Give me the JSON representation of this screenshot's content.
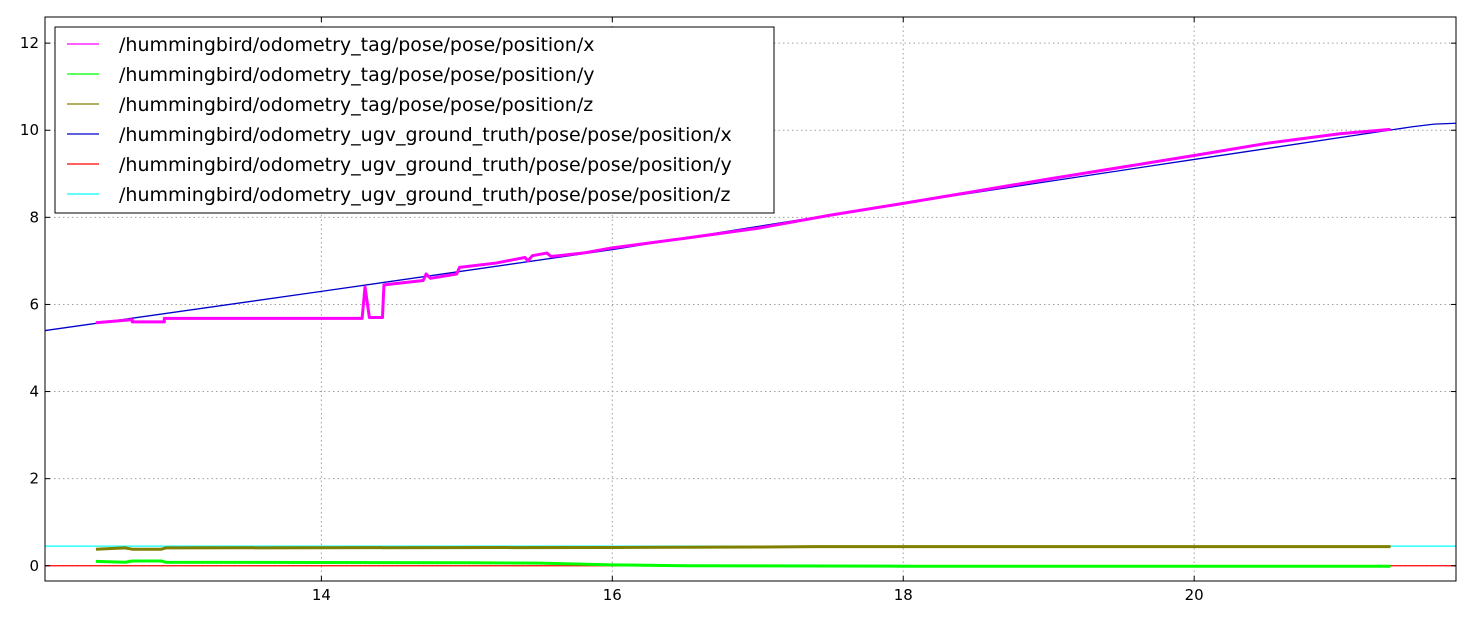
{
  "chart_data": {
    "type": "line",
    "title": "",
    "xlabel": "",
    "ylabel": "",
    "xlim": [
      12.1,
      21.8
    ],
    "ylim": [
      -0.35,
      12.6
    ],
    "x_ticks": [
      14,
      16,
      18,
      20
    ],
    "y_ticks": [
      0,
      2,
      4,
      6,
      8,
      10,
      12
    ],
    "grid": true,
    "legend_position": "top-left",
    "series": [
      {
        "name": "/hummingbird/odometry_tag/pose/pose/position/x",
        "color": "#ff00ff",
        "width": 3,
        "points": [
          [
            12.45,
            5.58
          ],
          [
            12.7,
            5.65
          ],
          [
            12.7,
            5.6
          ],
          [
            12.92,
            5.6
          ],
          [
            12.92,
            5.68
          ],
          [
            14.28,
            5.68
          ],
          [
            14.3,
            6.4
          ],
          [
            14.33,
            5.7
          ],
          [
            14.42,
            5.7
          ],
          [
            14.43,
            6.45
          ],
          [
            14.7,
            6.55
          ],
          [
            14.72,
            6.7
          ],
          [
            14.75,
            6.6
          ],
          [
            14.93,
            6.7
          ],
          [
            14.95,
            6.85
          ],
          [
            15.2,
            6.95
          ],
          [
            15.4,
            7.08
          ],
          [
            15.42,
            7.0
          ],
          [
            15.45,
            7.12
          ],
          [
            15.55,
            7.18
          ],
          [
            15.58,
            7.1
          ],
          [
            15.8,
            7.18
          ],
          [
            16.0,
            7.3
          ],
          [
            16.5,
            7.52
          ],
          [
            17.0,
            7.75
          ],
          [
            17.5,
            8.05
          ],
          [
            18.0,
            8.32
          ],
          [
            18.5,
            8.6
          ],
          [
            19.0,
            8.88
          ],
          [
            19.5,
            9.15
          ],
          [
            20.0,
            9.42
          ],
          [
            20.5,
            9.7
          ],
          [
            21.0,
            9.92
          ],
          [
            21.35,
            10.02
          ]
        ]
      },
      {
        "name": "/hummingbird/odometry_tag/pose/pose/position/y",
        "color": "#00ff00",
        "width": 3,
        "points": [
          [
            12.45,
            0.1
          ],
          [
            12.65,
            0.08
          ],
          [
            12.7,
            0.11
          ],
          [
            12.9,
            0.11
          ],
          [
            12.93,
            0.08
          ],
          [
            15.0,
            0.07
          ],
          [
            15.5,
            0.06
          ],
          [
            16.0,
            0.02
          ],
          [
            16.5,
            0.0
          ],
          [
            18.0,
            -0.01
          ],
          [
            21.35,
            -0.01
          ]
        ]
      },
      {
        "name": "/hummingbird/odometry_tag/pose/pose/position/z",
        "color": "#808000",
        "width": 3,
        "points": [
          [
            12.45,
            0.38
          ],
          [
            12.65,
            0.41
          ],
          [
            12.7,
            0.38
          ],
          [
            12.9,
            0.38
          ],
          [
            12.93,
            0.41
          ],
          [
            16.0,
            0.42
          ],
          [
            17.0,
            0.43
          ],
          [
            17.4,
            0.44
          ],
          [
            21.35,
            0.44
          ]
        ]
      },
      {
        "name": "/hummingbird/odometry_ugv_ground_truth/pose/pose/position/x",
        "color": "#0000cc",
        "width": 1.3,
        "points": [
          [
            12.1,
            5.4
          ],
          [
            14.0,
            6.3
          ],
          [
            16.0,
            7.26
          ],
          [
            18.0,
            8.32
          ],
          [
            20.0,
            9.33
          ],
          [
            21.5,
            10.08
          ],
          [
            21.65,
            10.14
          ],
          [
            21.8,
            10.16
          ]
        ]
      },
      {
        "name": "/hummingbird/odometry_ugv_ground_truth/pose/pose/position/y",
        "color": "#ff0000",
        "width": 1.3,
        "points": [
          [
            12.1,
            0.0
          ],
          [
            21.8,
            0.0
          ]
        ]
      },
      {
        "name": "/hummingbird/odometry_ugv_ground_truth/pose/pose/position/z",
        "color": "#00ffff",
        "width": 1.3,
        "points": [
          [
            12.1,
            0.45
          ],
          [
            21.8,
            0.45
          ]
        ]
      }
    ]
  }
}
